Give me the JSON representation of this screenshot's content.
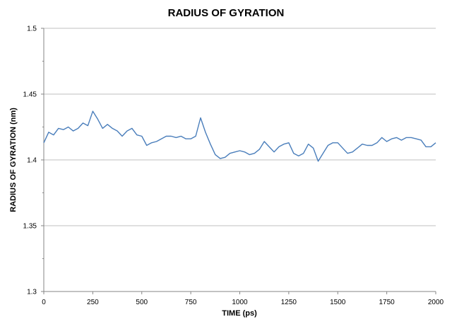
{
  "chart_data": {
    "type": "line",
    "title": "RADIUS OF GYRATION",
    "xlabel": "TIME (ps)",
    "ylabel": "RADIUS OF GYRATION (nm)",
    "xlim": [
      0,
      2000
    ],
    "ylim": [
      1.3,
      1.5
    ],
    "x_ticks": [
      "0",
      "250",
      "500",
      "750",
      "1000",
      "1250",
      "1500",
      "1750",
      "2000"
    ],
    "y_ticks": [
      "1.3",
      "1.35",
      "1.4",
      "1.45",
      "1.5"
    ],
    "grid": "horizontal",
    "line_color": "#4a7ebb",
    "series": [
      {
        "x": [
          0,
          25,
          50,
          75,
          100,
          125,
          150,
          175,
          200,
          225,
          250,
          275,
          300,
          325,
          350,
          375,
          400,
          425,
          450,
          475,
          500,
          525,
          550,
          575,
          600,
          625,
          650,
          675,
          700,
          725,
          750,
          775,
          800,
          825,
          850,
          875,
          900,
          925,
          950,
          975,
          1000,
          1025,
          1050,
          1075,
          1100,
          1125,
          1150,
          1175,
          1200,
          1225,
          1250,
          1275,
          1300,
          1325,
          1350,
          1375,
          1400,
          1425,
          1450,
          1475,
          1500,
          1525,
          1550,
          1575,
          1600,
          1625,
          1650,
          1675,
          1700,
          1725,
          1750,
          1775,
          1800,
          1825,
          1850,
          1875,
          1900,
          1925,
          1950,
          1975,
          2000
        ],
        "values": [
          1.413,
          1.421,
          1.419,
          1.424,
          1.423,
          1.425,
          1.422,
          1.424,
          1.428,
          1.426,
          1.437,
          1.431,
          1.424,
          1.427,
          1.424,
          1.422,
          1.418,
          1.422,
          1.424,
          1.419,
          1.418,
          1.411,
          1.413,
          1.414,
          1.416,
          1.418,
          1.418,
          1.417,
          1.418,
          1.416,
          1.416,
          1.418,
          1.432,
          1.421,
          1.412,
          1.404,
          1.401,
          1.402,
          1.405,
          1.406,
          1.407,
          1.406,
          1.404,
          1.405,
          1.408,
          1.414,
          1.41,
          1.406,
          1.41,
          1.412,
          1.413,
          1.405,
          1.403,
          1.405,
          1.412,
          1.409,
          1.399,
          1.405,
          1.411,
          1.413,
          1.413,
          1.409,
          1.405,
          1.406,
          1.409,
          1.412,
          1.411,
          1.411,
          1.413,
          1.417,
          1.414,
          1.416,
          1.417,
          1.415,
          1.417,
          1.417,
          1.416,
          1.415,
          1.41,
          1.41,
          1.413
        ]
      }
    ]
  }
}
